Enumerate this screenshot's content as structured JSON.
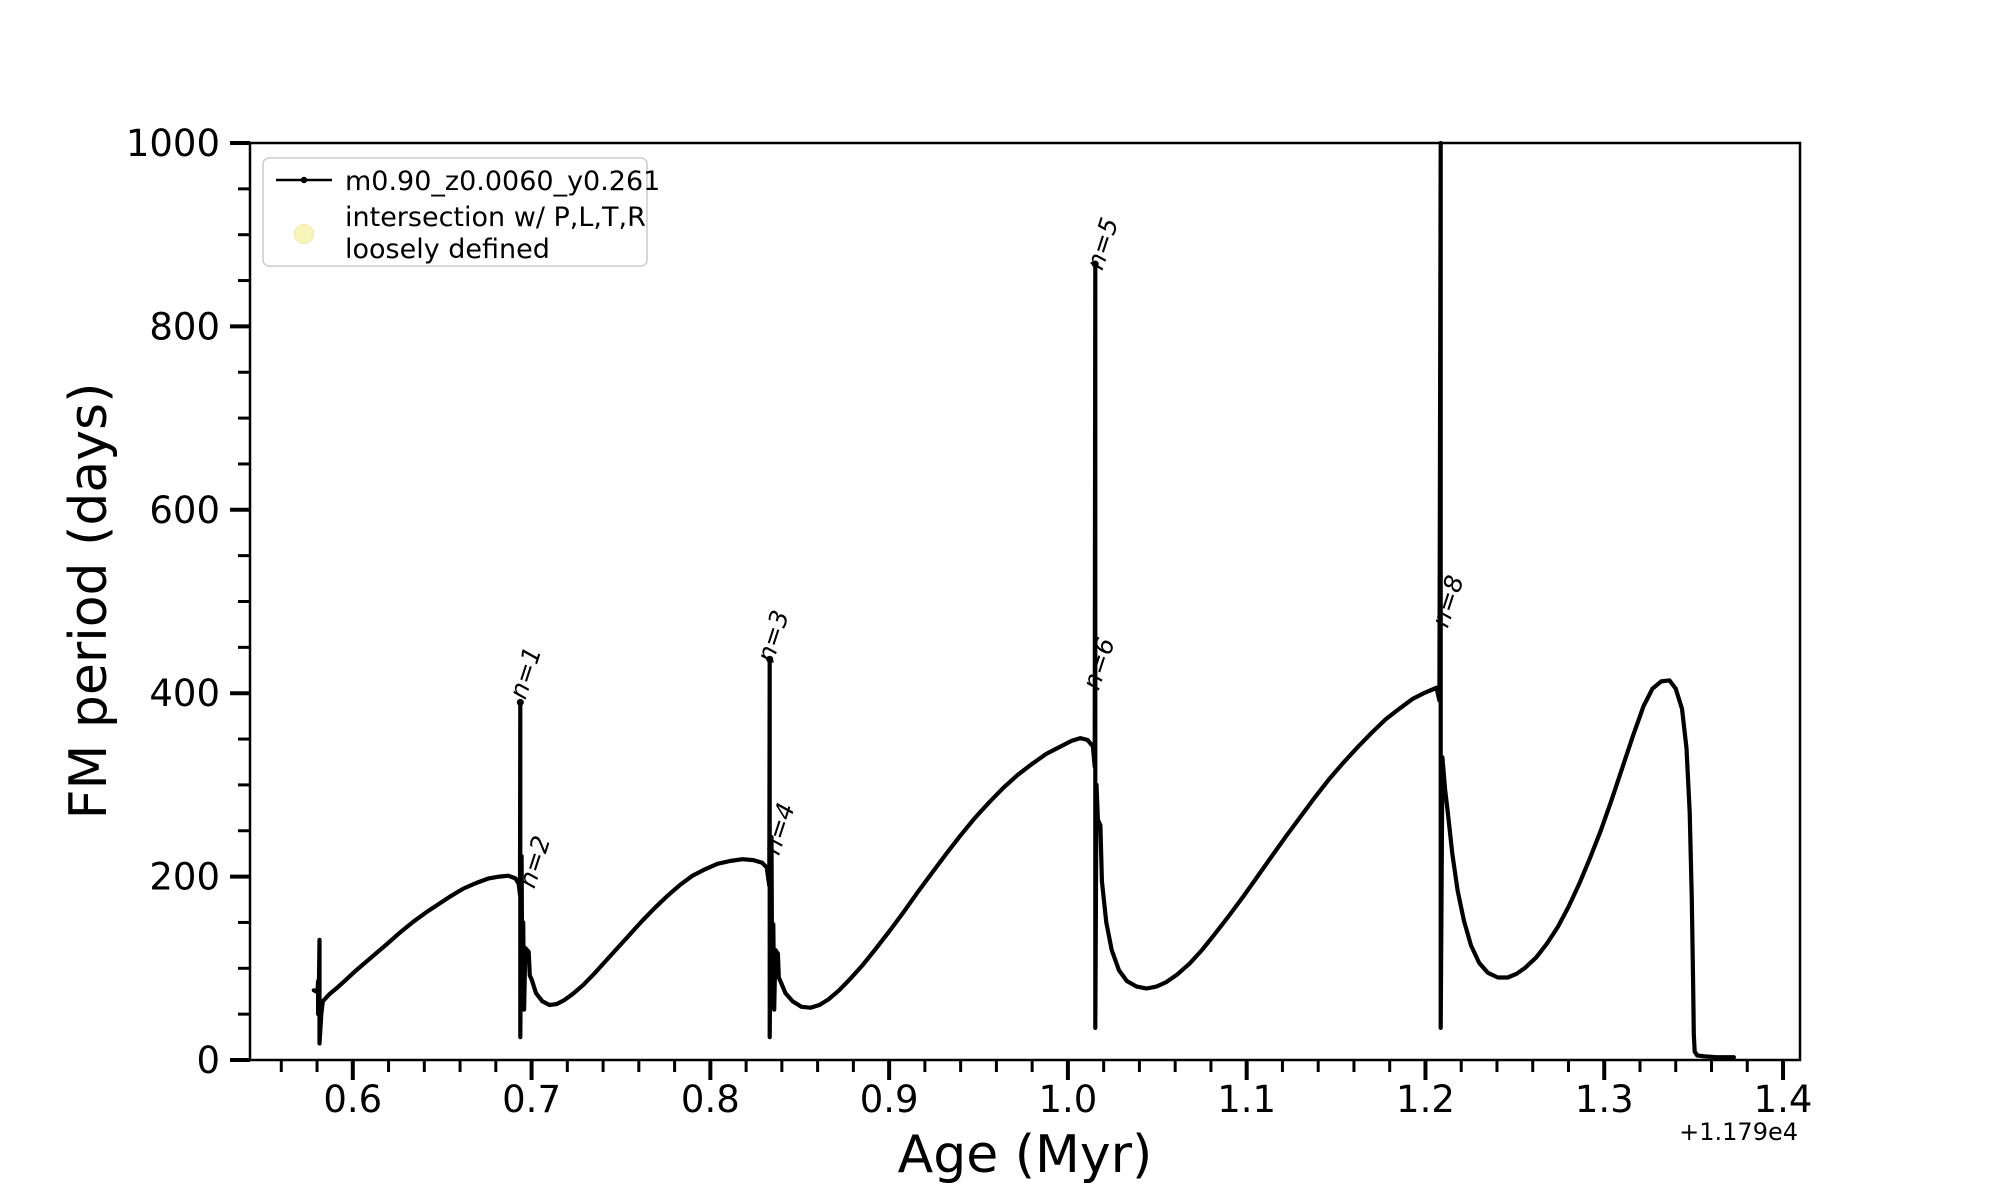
{
  "figure": {
    "xlabel": "Age (Myr)",
    "ylabel": "FM period (days)",
    "x_offset_text": "+1.179e4",
    "background_color": "#ffffff",
    "line_color": "#000000"
  },
  "legend": {
    "entry1_label": "m0.90_z0.0060_y0.261",
    "entry2_label_line1": "intersection w/ P,L,T,R",
    "entry2_label_line2": "loosely defined",
    "entry1_color": "#000000",
    "entry2_marker_color": "#f8f5bb"
  },
  "chart_data": {
    "type": "line",
    "title": "",
    "xlabel": "Age (Myr)",
    "ylabel": "FM period (days)",
    "x_axis_offset": "+1.179e4",
    "xlim": [
      0.5425,
      1.4095
    ],
    "ylim": [
      0,
      1000
    ],
    "x_major_ticks": [
      0.6,
      0.7,
      0.8,
      0.9,
      1.0,
      1.1,
      1.2,
      1.3,
      1.4
    ],
    "x_minor_tick_step": 0.02,
    "y_major_ticks": [
      0,
      200,
      400,
      600,
      800,
      1000
    ],
    "y_minor_tick_step": 50,
    "grid": false,
    "legend_position": "upper left",
    "series": [
      {
        "name": "m0.90_z0.0060_y0.261",
        "color": "#000000",
        "marker": "point",
        "points": [
          [
            0.5782,
            76
          ],
          [
            0.5802,
            74
          ],
          [
            0.5806,
            86
          ],
          [
            0.5806,
            50
          ],
          [
            0.581,
            72
          ],
          [
            0.5814,
            131
          ],
          [
            0.5814,
            18
          ],
          [
            0.5824,
            50
          ],
          [
            0.5832,
            64
          ],
          [
            0.587,
            72
          ],
          [
            0.592,
            80
          ],
          [
            0.597,
            89
          ],
          [
            0.602,
            98
          ],
          [
            0.608,
            108
          ],
          [
            0.614,
            118
          ],
          [
            0.62,
            128
          ],
          [
            0.627,
            140
          ],
          [
            0.634,
            151
          ],
          [
            0.641,
            161
          ],
          [
            0.648,
            170
          ],
          [
            0.655,
            179
          ],
          [
            0.662,
            187
          ],
          [
            0.669,
            193
          ],
          [
            0.676,
            198
          ],
          [
            0.682,
            200
          ],
          [
            0.687,
            201
          ],
          [
            0.691,
            198
          ],
          [
            0.6928,
            192
          ],
          [
            0.6935,
            180
          ],
          [
            0.6937,
            390
          ],
          [
            0.6937,
            25
          ],
          [
            0.6944,
            222
          ],
          [
            0.6948,
            58
          ],
          [
            0.6953,
            150
          ],
          [
            0.6958,
            55
          ],
          [
            0.6965,
            122
          ],
          [
            0.6984,
            118
          ],
          [
            0.699,
            92
          ],
          [
            0.7,
            88
          ],
          [
            0.7025,
            73
          ],
          [
            0.706,
            64
          ],
          [
            0.71,
            60
          ],
          [
            0.714,
            61
          ],
          [
            0.718,
            65
          ],
          [
            0.723,
            72
          ],
          [
            0.729,
            82
          ],
          [
            0.735,
            94
          ],
          [
            0.741,
            107
          ],
          [
            0.748,
            122
          ],
          [
            0.755,
            137
          ],
          [
            0.762,
            152
          ],
          [
            0.769,
            166
          ],
          [
            0.776,
            179
          ],
          [
            0.783,
            191
          ],
          [
            0.79,
            201
          ],
          [
            0.797,
            208
          ],
          [
            0.804,
            214
          ],
          [
            0.811,
            217
          ],
          [
            0.818,
            219
          ],
          [
            0.824,
            218
          ],
          [
            0.829,
            215
          ],
          [
            0.8315,
            210
          ],
          [
            0.833,
            190
          ],
          [
            0.8332,
            437
          ],
          [
            0.8332,
            25
          ],
          [
            0.8342,
            243
          ],
          [
            0.8346,
            58
          ],
          [
            0.8352,
            148
          ],
          [
            0.8357,
            55
          ],
          [
            0.8364,
            120
          ],
          [
            0.8378,
            116
          ],
          [
            0.8383,
            90
          ],
          [
            0.8392,
            86
          ],
          [
            0.842,
            73
          ],
          [
            0.846,
            64
          ],
          [
            0.851,
            58
          ],
          [
            0.856,
            57
          ],
          [
            0.861,
            60
          ],
          [
            0.866,
            66
          ],
          [
            0.872,
            76
          ],
          [
            0.878,
            88
          ],
          [
            0.885,
            103
          ],
          [
            0.892,
            120
          ],
          [
            0.9,
            140
          ],
          [
            0.908,
            161
          ],
          [
            0.916,
            183
          ],
          [
            0.924,
            204
          ],
          [
            0.932,
            225
          ],
          [
            0.94,
            245
          ],
          [
            0.948,
            264
          ],
          [
            0.956,
            281
          ],
          [
            0.964,
            297
          ],
          [
            0.972,
            311
          ],
          [
            0.98,
            323
          ],
          [
            0.988,
            334
          ],
          [
            0.996,
            342
          ],
          [
            1.002,
            348
          ],
          [
            1.007,
            351
          ],
          [
            1.011,
            349
          ],
          [
            1.014,
            342
          ],
          [
            1.015,
            320
          ],
          [
            1.0153,
            868
          ],
          [
            1.0153,
            35
          ],
          [
            1.016,
            300
          ],
          [
            1.0168,
            262
          ],
          [
            1.0182,
            256
          ],
          [
            1.019,
            195
          ],
          [
            1.0215,
            150
          ],
          [
            1.0245,
            120
          ],
          [
            1.0285,
            98
          ],
          [
            1.033,
            86
          ],
          [
            1.0385,
            80
          ],
          [
            1.044,
            78
          ],
          [
            1.0495,
            80
          ],
          [
            1.055,
            85
          ],
          [
            1.061,
            93
          ],
          [
            1.068,
            105
          ],
          [
            1.075,
            120
          ],
          [
            1.082,
            137
          ],
          [
            1.09,
            157
          ],
          [
            1.098,
            178
          ],
          [
            1.106,
            200
          ],
          [
            1.114,
            222
          ],
          [
            1.122,
            244
          ],
          [
            1.13,
            265
          ],
          [
            1.138,
            286
          ],
          [
            1.146,
            306
          ],
          [
            1.154,
            324
          ],
          [
            1.162,
            341
          ],
          [
            1.17,
            357
          ],
          [
            1.178,
            372
          ],
          [
            1.186,
            384
          ],
          [
            1.193,
            394
          ],
          [
            1.199,
            400
          ],
          [
            1.204,
            404
          ],
          [
            1.2062,
            406
          ],
          [
            1.2078,
            392
          ],
          [
            1.2085,
            1000
          ],
          [
            1.2085,
            35
          ],
          [
            1.2095,
            330
          ],
          [
            1.211,
            295
          ],
          [
            1.2125,
            270
          ],
          [
            1.215,
            225
          ],
          [
            1.218,
            185
          ],
          [
            1.2215,
            152
          ],
          [
            1.2255,
            125
          ],
          [
            1.23,
            106
          ],
          [
            1.235,
            95
          ],
          [
            1.2405,
            90
          ],
          [
            1.246,
            90
          ],
          [
            1.251,
            94
          ],
          [
            1.256,
            101
          ],
          [
            1.262,
            112
          ],
          [
            1.268,
            127
          ],
          [
            1.274,
            145
          ],
          [
            1.28,
            167
          ],
          [
            1.286,
            192
          ],
          [
            1.292,
            220
          ],
          [
            1.298,
            250
          ],
          [
            1.304,
            283
          ],
          [
            1.31,
            318
          ],
          [
            1.316,
            353
          ],
          [
            1.322,
            386
          ],
          [
            1.327,
            405
          ],
          [
            1.332,
            413
          ],
          [
            1.3365,
            414
          ],
          [
            1.34,
            405
          ],
          [
            1.3435,
            383
          ],
          [
            1.346,
            340
          ],
          [
            1.3478,
            270
          ],
          [
            1.349,
            175
          ],
          [
            1.3497,
            85
          ],
          [
            1.3501,
            28
          ],
          [
            1.3506,
            9
          ],
          [
            1.352,
            5
          ],
          [
            1.356,
            4
          ],
          [
            1.363,
            3
          ],
          [
            1.37,
            3
          ],
          [
            1.3725,
            3
          ]
        ]
      },
      {
        "name": "intersection w/ P,L,T,R loosely defined",
        "color": "#f8f5bb",
        "marker": "circle",
        "points": []
      }
    ],
    "annotations": [
      {
        "text": "n=1",
        "x": 0.6965,
        "y": 392,
        "rotation_deg": 72
      },
      {
        "text": "n=2",
        "x": 0.7015,
        "y": 186,
        "rotation_deg": 72
      },
      {
        "text": "n=3",
        "x": 0.835,
        "y": 432,
        "rotation_deg": 72
      },
      {
        "text": "n=4",
        "x": 0.8383,
        "y": 222,
        "rotation_deg": 72
      },
      {
        "text": "n=5",
        "x": 1.0192,
        "y": 860,
        "rotation_deg": 72
      },
      {
        "text": "n=6",
        "x": 1.0172,
        "y": 402,
        "rotation_deg": 72
      },
      {
        "text": "n=8",
        "x": 1.2124,
        "y": 470,
        "rotation_deg": 72
      }
    ]
  }
}
